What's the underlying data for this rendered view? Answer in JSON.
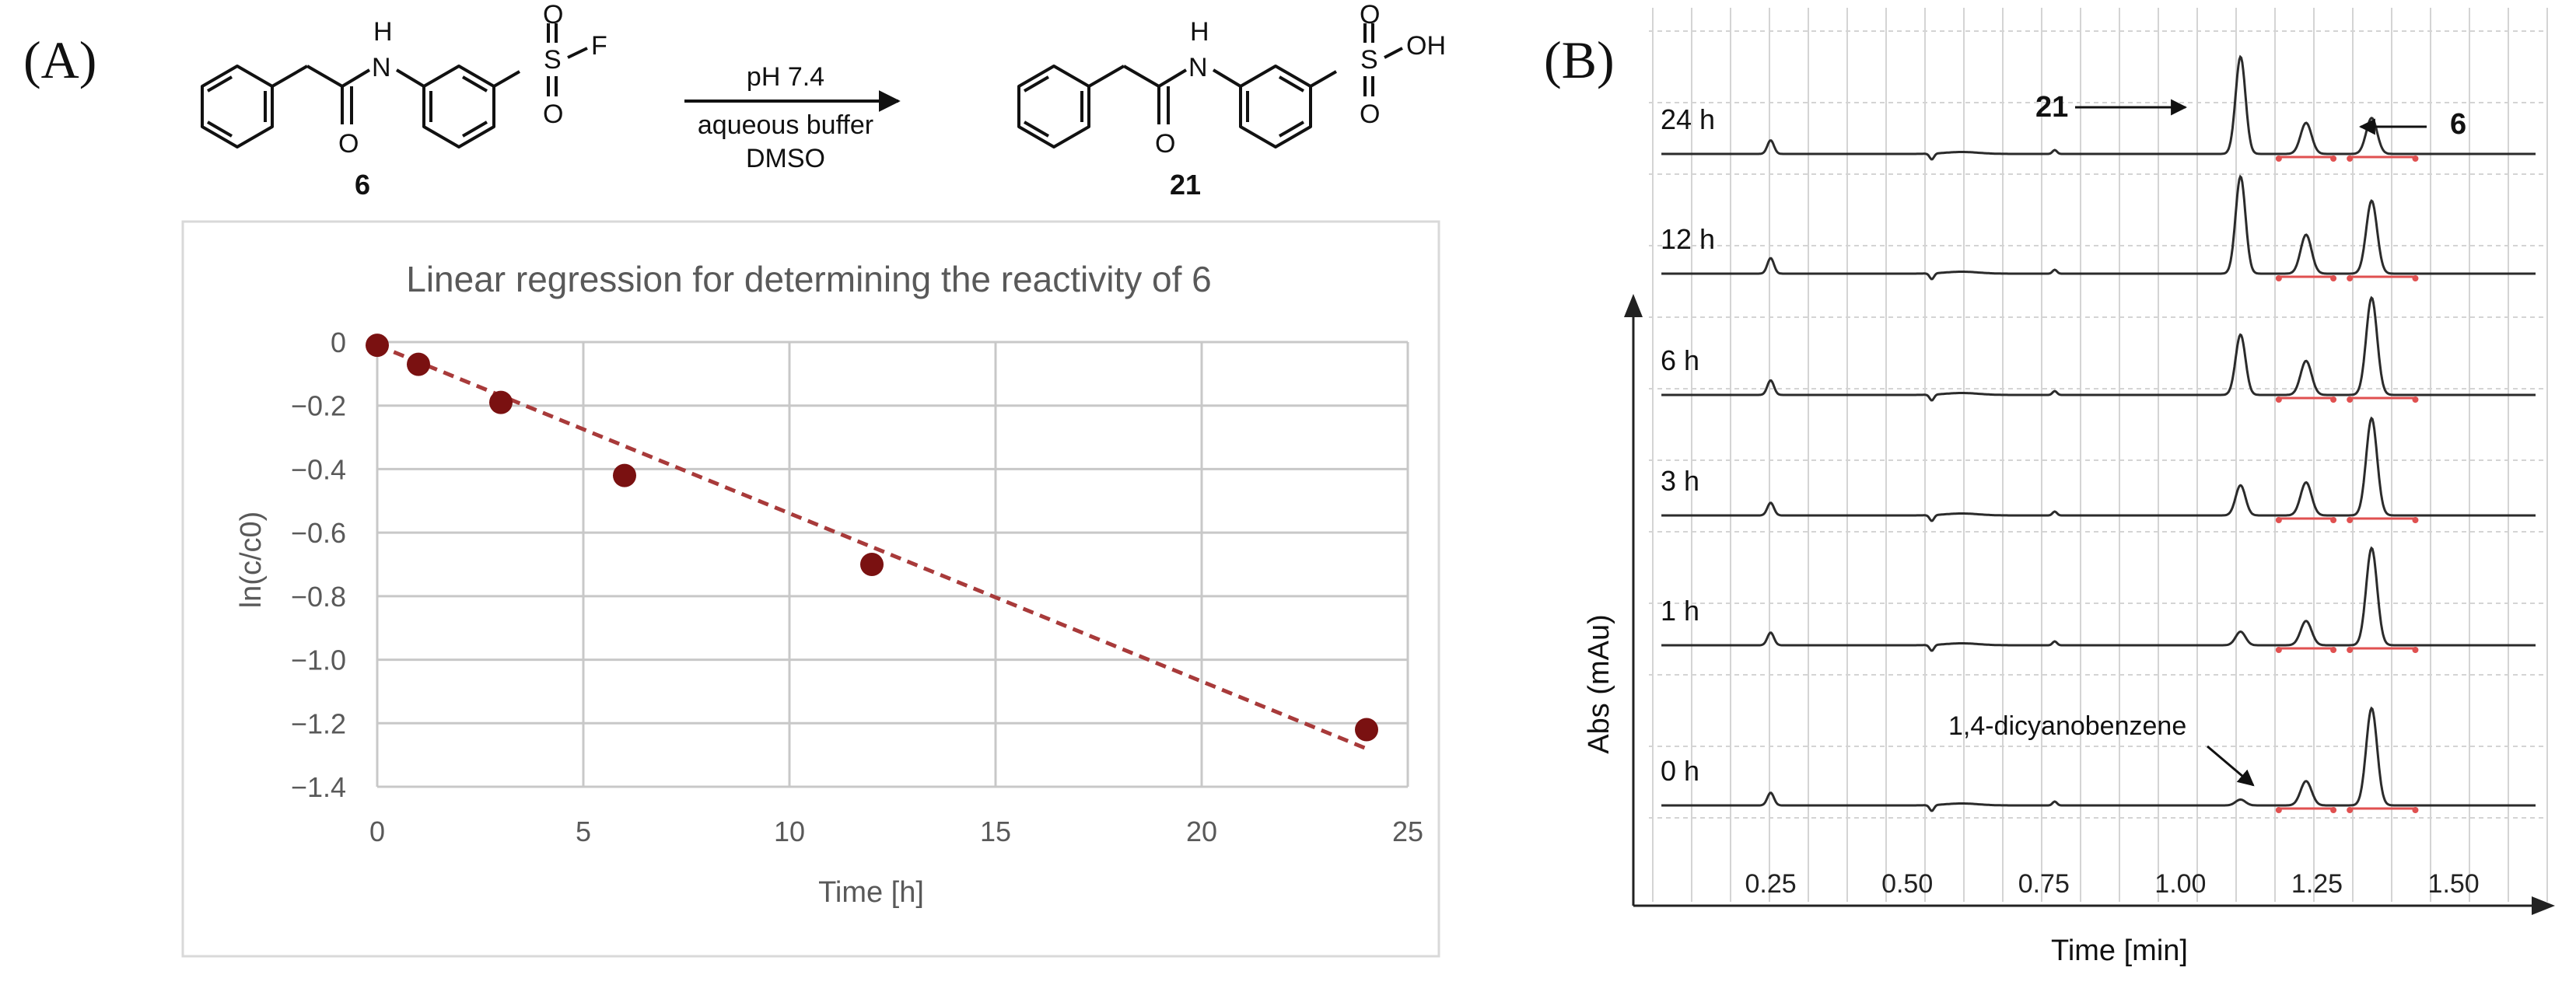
{
  "panel_labels": {
    "a": "(A)",
    "b": "(B)"
  },
  "scheme": {
    "reactant_label": "6",
    "product_label": "21",
    "reactant_atoms": {
      "nh": "N",
      "h": "H",
      "s": "S",
      "f": "F",
      "o1": "O",
      "o2": "O",
      "carbonyl_o": "O"
    },
    "product_atoms": {
      "nh": "N",
      "h": "H",
      "s": "S",
      "oh": "OH",
      "o1": "O",
      "o2": "O",
      "carbonyl_o": "O"
    },
    "conditions": {
      "line1": "pH 7.4",
      "line2": "aqueous buffer",
      "line3": "DMSO"
    }
  },
  "chart_data": [
    {
      "type": "scatter",
      "title": "Linear regression for determining the reactivity of 6",
      "xlabel": "Time [h]",
      "ylabel": "ln(c/c0)",
      "xlim": [
        0,
        25
      ],
      "ylim": [
        -1.4,
        0
      ],
      "xticks": [
        "0",
        "5",
        "10",
        "15",
        "20",
        "25"
      ],
      "yticks": [
        "0",
        "−0.2",
        "−0.4",
        "−0.6",
        "−0.8",
        "−1.0",
        "−1.2",
        "−1.4"
      ],
      "grid": true,
      "points": [
        {
          "x": 0,
          "y": -0.01
        },
        {
          "x": 1,
          "y": -0.07
        },
        {
          "x": 3,
          "y": -0.19
        },
        {
          "x": 6,
          "y": -0.42
        },
        {
          "x": 12,
          "y": -0.7
        },
        {
          "x": 24,
          "y": -1.22
        }
      ],
      "trendline": {
        "style": "dashed",
        "x": [
          0,
          24
        ],
        "y": [
          -0.01,
          -1.28
        ]
      },
      "colors": {
        "points": "#7a1111",
        "trendline": "#a83a3a",
        "grid": "#c8c8c8",
        "text": "#595959"
      }
    },
    {
      "type": "line",
      "xlabel": "Time [min]",
      "ylabel": "Abs (mAu)",
      "xticks": [
        "0.25",
        "0.50",
        "0.75",
        "1.00",
        "1.25",
        "1.50"
      ],
      "xlim": [
        0.02,
        1.65
      ],
      "traces": [
        {
          "label": "24 h",
          "peaks": [
            {
              "x": 0.25,
              "h": 0.14
            },
            {
              "x": 1.11,
              "h": 1.0
            },
            {
              "x": 1.23,
              "h": 0.32
            },
            {
              "x": 1.35,
              "h": 0.37
            }
          ]
        },
        {
          "label": "12 h",
          "peaks": [
            {
              "x": 0.25,
              "h": 0.16
            },
            {
              "x": 1.11,
              "h": 1.0
            },
            {
              "x": 1.23,
              "h": 0.4
            },
            {
              "x": 1.35,
              "h": 0.75
            }
          ]
        },
        {
          "label": "6 h",
          "peaks": [
            {
              "x": 0.25,
              "h": 0.15
            },
            {
              "x": 1.11,
              "h": 0.62
            },
            {
              "x": 1.23,
              "h": 0.35
            },
            {
              "x": 1.35,
              "h": 1.0
            }
          ]
        },
        {
          "label": "3 h",
          "peaks": [
            {
              "x": 0.25,
              "h": 0.13
            },
            {
              "x": 1.11,
              "h": 0.31
            },
            {
              "x": 1.23,
              "h": 0.34
            },
            {
              "x": 1.35,
              "h": 1.0
            }
          ]
        },
        {
          "label": "1 h",
          "peaks": [
            {
              "x": 0.25,
              "h": 0.13
            },
            {
              "x": 1.11,
              "h": 0.14
            },
            {
              "x": 1.23,
              "h": 0.25
            },
            {
              "x": 1.35,
              "h": 1.0
            }
          ]
        },
        {
          "label": "0 h",
          "peaks": [
            {
              "x": 0.25,
              "h": 0.13
            },
            {
              "x": 1.11,
              "h": 0.06
            },
            {
              "x": 1.23,
              "h": 0.25
            },
            {
              "x": 1.35,
              "h": 1.0
            }
          ]
        }
      ],
      "annotations": [
        {
          "text": "21",
          "bold": true
        },
        {
          "text": "6",
          "bold": true
        },
        {
          "text": "1,4-dicyanobenzene",
          "bold": false
        }
      ],
      "colors": {
        "trace": "#2b2b2b",
        "integration": "#e05050",
        "grid": "#d4d4d4",
        "axis": "#222222"
      }
    }
  ]
}
